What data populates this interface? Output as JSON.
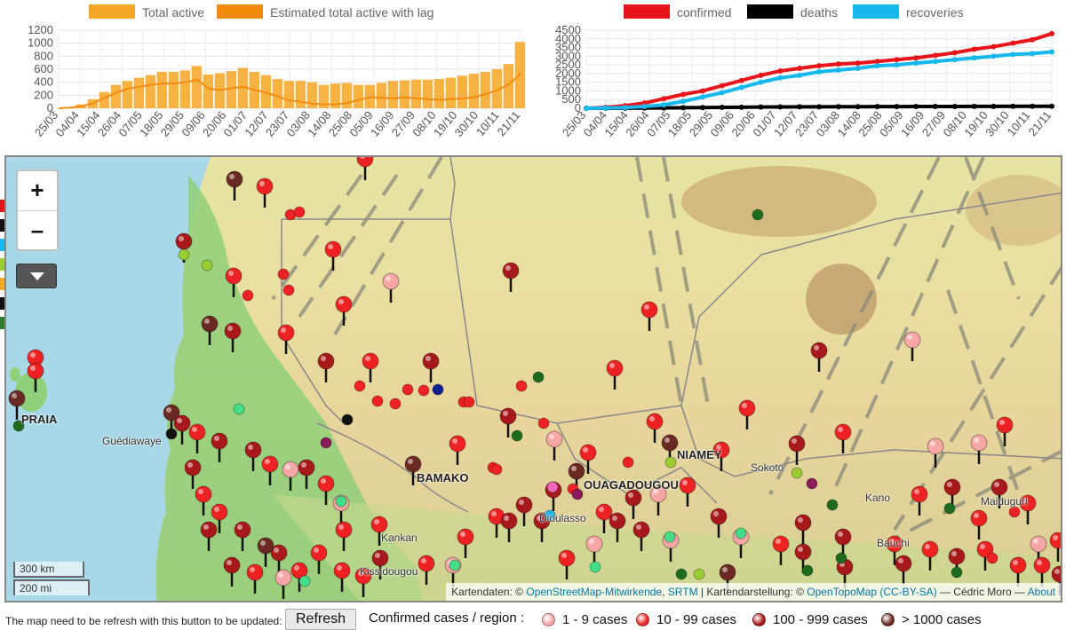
{
  "left_chart": {
    "legend": [
      {
        "label": "Total active",
        "color": "#f5a623"
      },
      {
        "label": "Estimated total active with lag",
        "color": "#f28c0f"
      }
    ]
  },
  "right_chart": {
    "legend": [
      {
        "label": "confirmed",
        "color": "#e8141b"
      },
      {
        "label": "deaths",
        "color": "#000000"
      },
      {
        "label": "recoveries",
        "color": "#16b8ee"
      }
    ]
  },
  "chart_data": [
    {
      "type": "bar",
      "ylim": [
        0,
        1200
      ],
      "y_ticks": [
        "1200",
        "1000",
        "800",
        "600",
        "400",
        "200",
        "0"
      ],
      "x_ticks": [
        "25/03",
        "04/04",
        "15/04",
        "26/04",
        "07/05",
        "18/05",
        "29/05",
        "09/06",
        "20/06",
        "01/07",
        "12/07",
        "23/07",
        "03/08",
        "14/08",
        "25/08",
        "05/09",
        "16/09",
        "27/09",
        "08/10",
        "19/10",
        "30/10",
        "10/11",
        "21/11"
      ],
      "series": [
        {
          "name": "Total active",
          "values": [
            0,
            20,
            60,
            140,
            250,
            360,
            420,
            470,
            510,
            560,
            560,
            580,
            650,
            520,
            540,
            570,
            620,
            560,
            510,
            450,
            420,
            420,
            400,
            360,
            380,
            390,
            360,
            360,
            390,
            420,
            430,
            440,
            440,
            450,
            470,
            500,
            530,
            560,
            600,
            680,
            1020
          ]
        },
        {
          "name": "Estimated total active with lag",
          "values": [
            0,
            10,
            30,
            80,
            160,
            240,
            300,
            330,
            360,
            380,
            380,
            400,
            440,
            300,
            280,
            310,
            330,
            280,
            240,
            180,
            120,
            100,
            70,
            60,
            60,
            80,
            130,
            170,
            160,
            150,
            170,
            150,
            140,
            130,
            140,
            150,
            170,
            220,
            280,
            370,
            530
          ]
        }
      ]
    },
    {
      "type": "line",
      "ylim": [
        0,
        4500
      ],
      "y_ticks": [
        "4500",
        "4000",
        "3500",
        "3000",
        "2500",
        "2000",
        "1500",
        "1000",
        "500",
        "0"
      ],
      "x_ticks": [
        "25/03",
        "04/04",
        "15/04",
        "26/04",
        "07/05",
        "18/05",
        "29/05",
        "09/06",
        "20/06",
        "01/07",
        "12/07",
        "23/07",
        "03/08",
        "14/08",
        "25/08",
        "05/09",
        "16/09",
        "27/09",
        "08/10",
        "19/10",
        "30/10",
        "10/11",
        "21/11"
      ],
      "series": [
        {
          "name": "confirmed",
          "values": [
            0,
            50,
            150,
            300,
            550,
            800,
            1000,
            1300,
            1600,
            1900,
            2150,
            2300,
            2450,
            2550,
            2600,
            2700,
            2800,
            2900,
            3050,
            3200,
            3400,
            3550,
            3750,
            3950,
            4300
          ]
        },
        {
          "name": "deaths",
          "values": [
            0,
            2,
            5,
            10,
            20,
            30,
            40,
            50,
            60,
            70,
            75,
            80,
            85,
            90,
            92,
            95,
            97,
            100,
            102,
            105,
            108,
            110,
            112,
            115,
            118
          ]
        },
        {
          "name": "recoveries",
          "values": [
            0,
            10,
            40,
            100,
            200,
            400,
            650,
            900,
            1200,
            1500,
            1750,
            1900,
            2100,
            2200,
            2300,
            2450,
            2500,
            2600,
            2700,
            2800,
            2900,
            3000,
            3100,
            3150,
            3250
          ]
        }
      ]
    }
  ],
  "map": {
    "zoom_in": "+",
    "zoom_out": "–",
    "scale_km": "300 km",
    "scale_mi": "200 mi",
    "cities": [
      {
        "name": "PRAIA",
        "style": "bold"
      },
      {
        "name": "Guédiawaye",
        "style": "small"
      },
      {
        "name": "BAMAKO",
        "style": "bold"
      },
      {
        "name": "NIAMEY",
        "style": "bold"
      },
      {
        "name": "OUAGADOUGOU",
        "style": "bold"
      },
      {
        "name": "Kano",
        "style": "small"
      },
      {
        "name": "Maiduguri",
        "style": "small"
      },
      {
        "name": "Kankan",
        "style": "small"
      },
      {
        "name": "Kissidougou",
        "style": "small"
      },
      {
        "name": "Bauchi",
        "style": "small"
      },
      {
        "name": "Sokoto",
        "style": "small"
      },
      {
        "name": "Dioulasso",
        "style": "small"
      }
    ],
    "attribution": {
      "prefix": "Kartendaten: ©",
      "osm": "OpenStreetMap-Mitwirkende",
      "srtm": "SRTM",
      "mid": "| Kartendarstellung: ©",
      "otm": "OpenTopoMap",
      "license": "(CC-BY-SA)",
      "author": "— Cédric Moro —",
      "about": "About"
    }
  },
  "bottom": {
    "note": "The map need to be refresh with this button to be updated:",
    "refresh_label": "Refresh",
    "legend_title": "Confirmed cases / region :",
    "legend": [
      {
        "label": "1 - 9 cases",
        "color": "#f7a6a6"
      },
      {
        "label": "10 - 99 cases",
        "color": "#ee2222"
      },
      {
        "label": "100 - 999 cases",
        "color": "#a8191c"
      },
      {
        "label": "> 1000 cases",
        "color": "#6a2a22"
      }
    ]
  }
}
